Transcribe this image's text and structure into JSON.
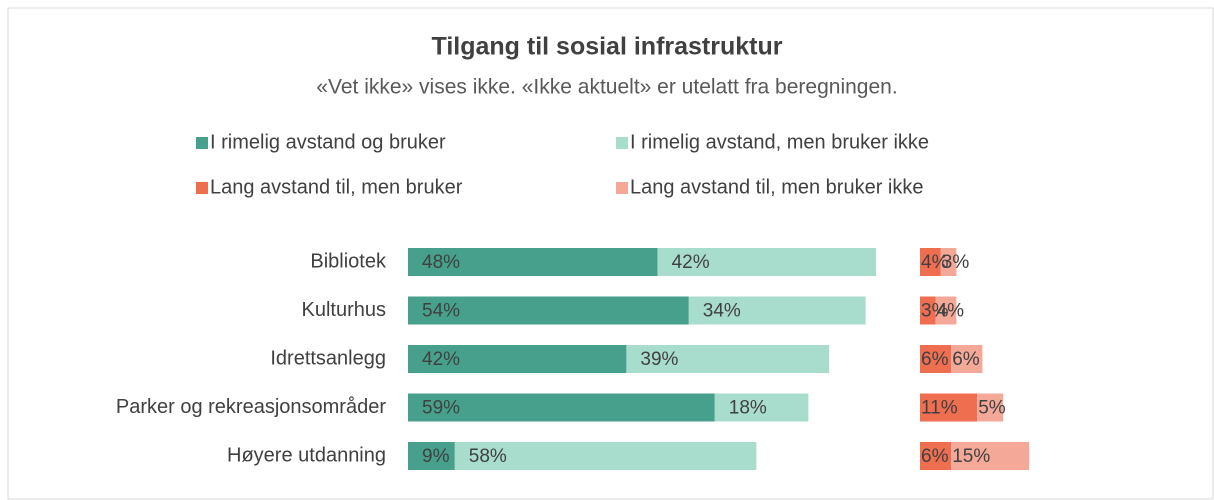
{
  "chart_data": {
    "type": "stacked-bar-horizontal",
    "title": "Tilgang til sosial infrastruktur",
    "subtitle": "«Vet ikke» vises ikke. «Ikke aktuelt» er utelatt fra beregningen.",
    "categories": [
      "Bibliotek",
      "Kulturhus",
      "Idrettsanlegg",
      "Parker og rekreasjonsområder",
      "Høyere utdanning"
    ],
    "xlim": [
      0,
      100
    ],
    "series": [
      {
        "name": "I rimelig avstand og bruker",
        "color": "#46a08c",
        "group": 1,
        "values": [
          48,
          54,
          42,
          59,
          9
        ],
        "value_labels": [
          "48%",
          "54%",
          "42%",
          "59%",
          "9%"
        ]
      },
      {
        "name": "I rimelig avstand, men bruker ikke",
        "color": "#a8dccd",
        "group": 1,
        "values": [
          42,
          34,
          39,
          18,
          58
        ],
        "value_labels": [
          "42%",
          "34%",
          "39%",
          "18%",
          "58%"
        ]
      },
      {
        "name": "Lang avstand til, men bruker",
        "color": "#f06e50",
        "group": 2,
        "values": [
          4,
          3,
          6,
          11,
          6
        ],
        "value_labels": [
          "4%",
          "3%",
          "6%",
          "11%",
          "6%"
        ]
      },
      {
        "name": "Lang avstand til, men bruker ikke",
        "color": "#f4a898",
        "group": 2,
        "values": [
          3,
          4,
          6,
          5,
          15
        ],
        "value_labels": [
          "3%",
          "4%",
          "6%",
          "5%",
          "15%"
        ]
      }
    ]
  }
}
